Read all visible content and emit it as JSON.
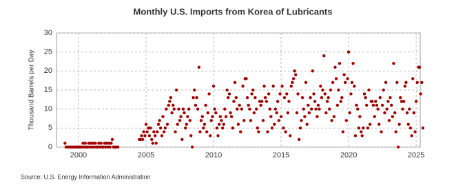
{
  "chart_data": {
    "type": "scatter",
    "title": "Monthly U.S. Imports from Korea of Lubricants",
    "y_label": "Thousand Barrels per Day",
    "source": "Source: U.S. Energy Information Administration",
    "color": "#a00000",
    "xlim": [
      1998.37,
      2025.3
    ],
    "xticks": [
      2000,
      2005,
      2010,
      2015,
      2020,
      2025
    ],
    "ylim": [
      0,
      30
    ],
    "yticks": [
      0,
      5,
      10,
      15,
      20,
      25,
      30
    ],
    "grid": true,
    "x": [
      1999,
      1999.08,
      1999.17,
      1999.25,
      1999.33,
      1999.42,
      1999.5,
      1999.58,
      1999.67,
      1999.75,
      1999.83,
      1999.92,
      2000,
      2000.08,
      2000.17,
      2000.25,
      2000.33,
      2000.42,
      2000.5,
      2000.58,
      2000.67,
      2000.75,
      2000.83,
      2000.92,
      2001,
      2001.08,
      2001.17,
      2001.25,
      2001.33,
      2001.42,
      2001.5,
      2001.58,
      2001.67,
      2001.75,
      2001.83,
      2001.92,
      2002,
      2002.08,
      2002.17,
      2002.25,
      2002.33,
      2002.42,
      2002.5,
      2002.58,
      2002.67,
      2002.75,
      2002.83,
      2002.92,
      2004.5,
      2004.58,
      2004.67,
      2004.75,
      2004.83,
      2004.92,
      2005,
      2005.08,
      2005.17,
      2005.25,
      2005.33,
      2005.42,
      2005.5,
      2005.58,
      2005.67,
      2005.75,
      2005.83,
      2005.92,
      2006,
      2006.08,
      2006.17,
      2006.25,
      2006.33,
      2006.42,
      2006.5,
      2006.58,
      2006.67,
      2006.75,
      2006.83,
      2006.92,
      2007,
      2007.08,
      2007.17,
      2007.25,
      2007.33,
      2007.42,
      2007.5,
      2007.58,
      2007.67,
      2007.75,
      2007.83,
      2007.92,
      2008,
      2008.08,
      2008.17,
      2008.25,
      2008.33,
      2008.42,
      2008.5,
      2008.58,
      2008.67,
      2008.75,
      2008.83,
      2008.92,
      2009,
      2009.08,
      2009.17,
      2009.25,
      2009.33,
      2009.42,
      2009.5,
      2009.58,
      2009.67,
      2009.75,
      2009.83,
      2009.92,
      2010,
      2010.08,
      2010.17,
      2010.25,
      2010.33,
      2010.42,
      2010.5,
      2010.58,
      2010.67,
      2010.75,
      2010.83,
      2010.92,
      2011,
      2011.08,
      2011.17,
      2011.25,
      2011.33,
      2011.42,
      2011.5,
      2011.58,
      2011.67,
      2011.75,
      2011.83,
      2011.92,
      2012,
      2012.08,
      2012.17,
      2012.25,
      2012.33,
      2012.42,
      2012.5,
      2012.58,
      2012.67,
      2012.75,
      2012.83,
      2012.92,
      2013,
      2013.08,
      2013.17,
      2013.25,
      2013.33,
      2013.42,
      2013.5,
      2013.58,
      2013.67,
      2013.75,
      2013.83,
      2013.92,
      2014,
      2014.08,
      2014.17,
      2014.25,
      2014.33,
      2014.42,
      2014.5,
      2014.58,
      2014.67,
      2014.75,
      2014.83,
      2014.92,
      2015,
      2015.08,
      2015.17,
      2015.25,
      2015.33,
      2015.42,
      2015.5,
      2015.58,
      2015.67,
      2015.75,
      2015.83,
      2015.92,
      2016,
      2016.08,
      2016.17,
      2016.25,
      2016.33,
      2016.42,
      2016.5,
      2016.58,
      2016.67,
      2016.75,
      2016.83,
      2016.92,
      2017,
      2017.08,
      2017.17,
      2017.25,
      2017.33,
      2017.42,
      2017.5,
      2017.58,
      2017.67,
      2017.75,
      2017.83,
      2017.92,
      2018,
      2018.08,
      2018.17,
      2018.25,
      2018.33,
      2018.42,
      2018.5,
      2018.58,
      2018.67,
      2018.75,
      2018.83,
      2018.92,
      2019,
      2019.08,
      2019.17,
      2019.25,
      2019.33,
      2019.42,
      2019.5,
      2019.58,
      2019.67,
      2019.75,
      2019.83,
      2019.92,
      2020,
      2020.08,
      2020.17,
      2020.25,
      2020.33,
      2020.42,
      2020.5,
      2020.58,
      2020.67,
      2020.75,
      2020.83,
      2020.92,
      2021,
      2021.08,
      2021.17,
      2021.25,
      2021.33,
      2021.42,
      2021.5,
      2021.58,
      2021.67,
      2021.75,
      2021.83,
      2021.92,
      2022,
      2022.08,
      2022.17,
      2022.25,
      2022.33,
      2022.42,
      2022.5,
      2022.58,
      2022.67,
      2022.75,
      2022.83,
      2022.92,
      2023,
      2023.08,
      2023.17,
      2023.25,
      2023.33,
      2023.42,
      2023.5,
      2023.58,
      2023.67,
      2023.75,
      2023.83,
      2023.92,
      2024,
      2024.08,
      2024.17,
      2024.25,
      2024.33,
      2024.42,
      2024.5,
      2024.58,
      2024.67,
      2024.75,
      2024.83,
      2024.92,
      2025,
      2025.08,
      2025.17,
      2025.25,
      2025.33,
      2025.42,
      2025.5
    ],
    "values": [
      1,
      0,
      0,
      0,
      0,
      0,
      0,
      0,
      0,
      0,
      0,
      0,
      0,
      0,
      0,
      0,
      1,
      0,
      1,
      0,
      0,
      1,
      0,
      1,
      0,
      1,
      0,
      1,
      0,
      0,
      1,
      0,
      1,
      0,
      0,
      1,
      0,
      1,
      0,
      1,
      0,
      1,
      2,
      0,
      0,
      0,
      0,
      0,
      2,
      2,
      3,
      2,
      4,
      3,
      6,
      4,
      5,
      3,
      5,
      2,
      1,
      4,
      3,
      1,
      4,
      6,
      7,
      5,
      3,
      8,
      4,
      5,
      10,
      6,
      11,
      12,
      13,
      9,
      11,
      10,
      4,
      15,
      6,
      10,
      7,
      8,
      2,
      10,
      9,
      5,
      6,
      8,
      10,
      7,
      3,
      0,
      13,
      15,
      11,
      13,
      10,
      21,
      4,
      7,
      8,
      5,
      6,
      11,
      4,
      9,
      14,
      3,
      7,
      8,
      16,
      10,
      9,
      5,
      3,
      6,
      8,
      7,
      5,
      6,
      10,
      8,
      15,
      13,
      14,
      9,
      8,
      5,
      12,
      17,
      13,
      10,
      6,
      11,
      4,
      10,
      16,
      7,
      18,
      18,
      13,
      11,
      10,
      7,
      14,
      15,
      9,
      13,
      10,
      5,
      4,
      12,
      11,
      12,
      7,
      16,
      13,
      12,
      4,
      14,
      10,
      8,
      5,
      16,
      6,
      10,
      9,
      12,
      7,
      14,
      8,
      16,
      5,
      13,
      4,
      14,
      9,
      12,
      3,
      16,
      17,
      18,
      20,
      19,
      9,
      14,
      2,
      5,
      7,
      13,
      10,
      8,
      17,
      6,
      11,
      9,
      13,
      10,
      20,
      14,
      12,
      10,
      8,
      11,
      10,
      16,
      13,
      15,
      24,
      14,
      9,
      12,
      13,
      10,
      15,
      7,
      17,
      8,
      21,
      18,
      11,
      15,
      22,
      12,
      13,
      4,
      19,
      17,
      7,
      18,
      25,
      9,
      14,
      17,
      22,
      16,
      3,
      11,
      10,
      5,
      8,
      4,
      3,
      5,
      14,
      13,
      11,
      5,
      15,
      6,
      12,
      12,
      11,
      8,
      12,
      11,
      10,
      6,
      13,
      4,
      11,
      15,
      9,
      17,
      10,
      12,
      7,
      13,
      11,
      8,
      22,
      9,
      4,
      17,
      0,
      6,
      13,
      12,
      10,
      12,
      16,
      17,
      9,
      6,
      10,
      5,
      3,
      18,
      9,
      4,
      12,
      17,
      21,
      21,
      14,
      17,
      5
    ]
  }
}
